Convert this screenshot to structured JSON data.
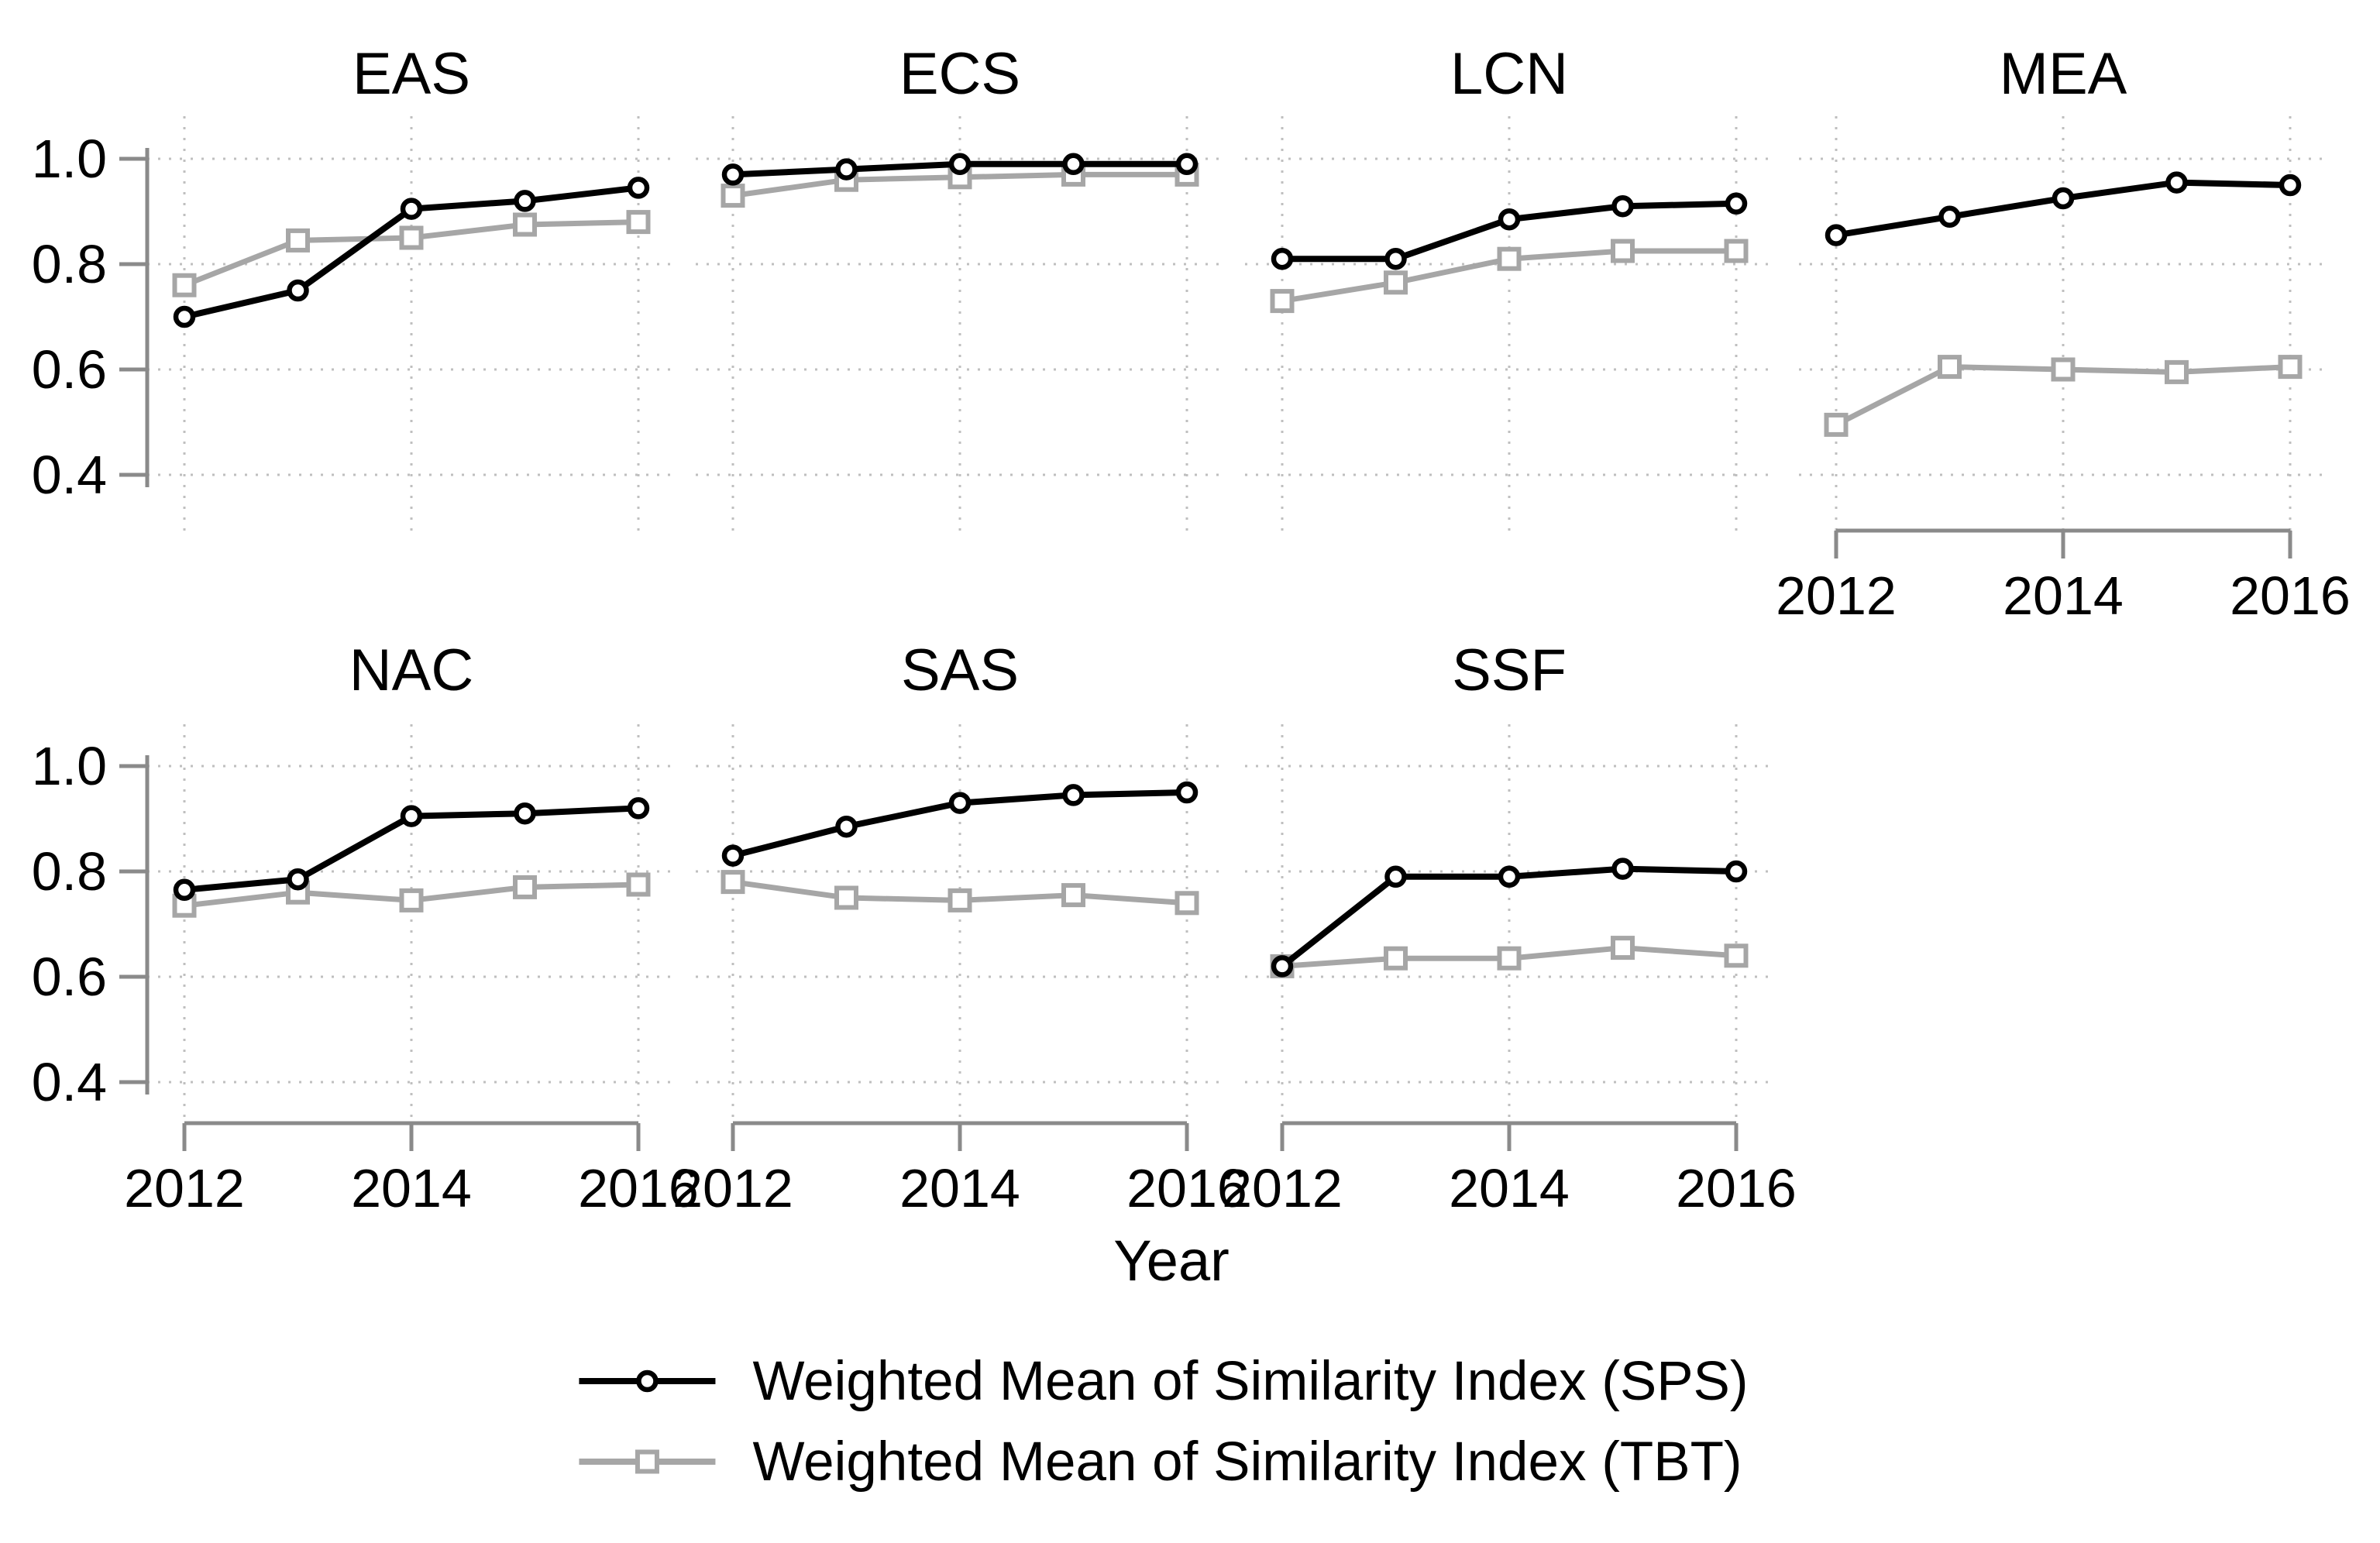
{
  "figure": {
    "background": "#ffffff"
  },
  "chart_data": {
    "type": "line",
    "layout": "small-multiples",
    "title": "",
    "xlabel": "Year",
    "ylabel": "",
    "x": [
      2012,
      2013,
      2014,
      2015,
      2016
    ],
    "x_tick_labels": [
      "2012",
      "2014",
      "2016"
    ],
    "x_ticks": [
      2012,
      2014,
      2016
    ],
    "y_tick_labels": [
      "1.0",
      "0.8",
      "0.6",
      "0.4"
    ],
    "y_ticks": [
      1.0,
      0.8,
      0.6,
      0.4
    ],
    "ylim": [
      0.33,
      1.08
    ],
    "grid": "dotted",
    "legend_position": "bottom",
    "series_names": [
      "SPS",
      "TBT"
    ],
    "panels": [
      {
        "title": "EAS",
        "row": 0,
        "col": 0,
        "y_axis": true,
        "x_axis": false,
        "series": {
          "sps": [
            0.7,
            0.75,
            0.905,
            0.92,
            0.945
          ],
          "tbt": [
            0.76,
            0.845,
            0.85,
            0.875,
            0.88
          ]
        }
      },
      {
        "title": "ECS",
        "row": 0,
        "col": 1,
        "y_axis": false,
        "x_axis": false,
        "series": {
          "sps": [
            0.97,
            0.98,
            0.99,
            0.99,
            0.99
          ],
          "tbt": [
            0.93,
            0.96,
            0.965,
            0.97,
            0.97
          ]
        }
      },
      {
        "title": "LCN",
        "row": 0,
        "col": 2,
        "y_axis": false,
        "x_axis": false,
        "series": {
          "sps": [
            0.81,
            0.81,
            0.885,
            0.91,
            0.915
          ],
          "tbt": [
            0.73,
            0.765,
            0.81,
            0.825,
            0.825
          ]
        }
      },
      {
        "title": "MEA",
        "row": 0,
        "col": 3,
        "y_axis": false,
        "x_axis": true,
        "series": {
          "sps": [
            0.855,
            0.89,
            0.925,
            0.955,
            0.95
          ],
          "tbt": [
            0.495,
            0.605,
            0.6,
            0.595,
            0.605
          ]
        }
      },
      {
        "title": "NAC",
        "row": 1,
        "col": 0,
        "y_axis": true,
        "x_axis": true,
        "series": {
          "sps": [
            0.765,
            0.785,
            0.905,
            0.91,
            0.92
          ],
          "tbt": [
            0.735,
            0.76,
            0.745,
            0.77,
            0.775
          ]
        }
      },
      {
        "title": "SAS",
        "row": 1,
        "col": 1,
        "y_axis": false,
        "x_axis": true,
        "series": {
          "sps": [
            0.83,
            0.885,
            0.93,
            0.945,
            0.95
          ],
          "tbt": [
            0.78,
            0.75,
            0.745,
            0.755,
            0.74
          ]
        }
      },
      {
        "title": "SSF",
        "row": 1,
        "col": 2,
        "y_axis": false,
        "x_axis": true,
        "series": {
          "sps": [
            0.62,
            0.79,
            0.79,
            0.805,
            0.8
          ],
          "tbt": [
            0.62,
            0.635,
            0.635,
            0.655,
            0.64
          ]
        }
      }
    ]
  },
  "legend": {
    "items": [
      {
        "label": "Weighted Mean of Similarity Index (SPS)",
        "marker": "circle",
        "color": "#000000"
      },
      {
        "label": "Weighted Mean of Similarity Index (TBT)",
        "marker": "square",
        "color": "#a6a6a6"
      }
    ]
  },
  "colors": {
    "sps": "#000000",
    "tbt": "#a6a6a6",
    "axis": "#8a8a8a",
    "grid": "#bfbfbf",
    "text": "#000000",
    "background": "#ffffff"
  }
}
